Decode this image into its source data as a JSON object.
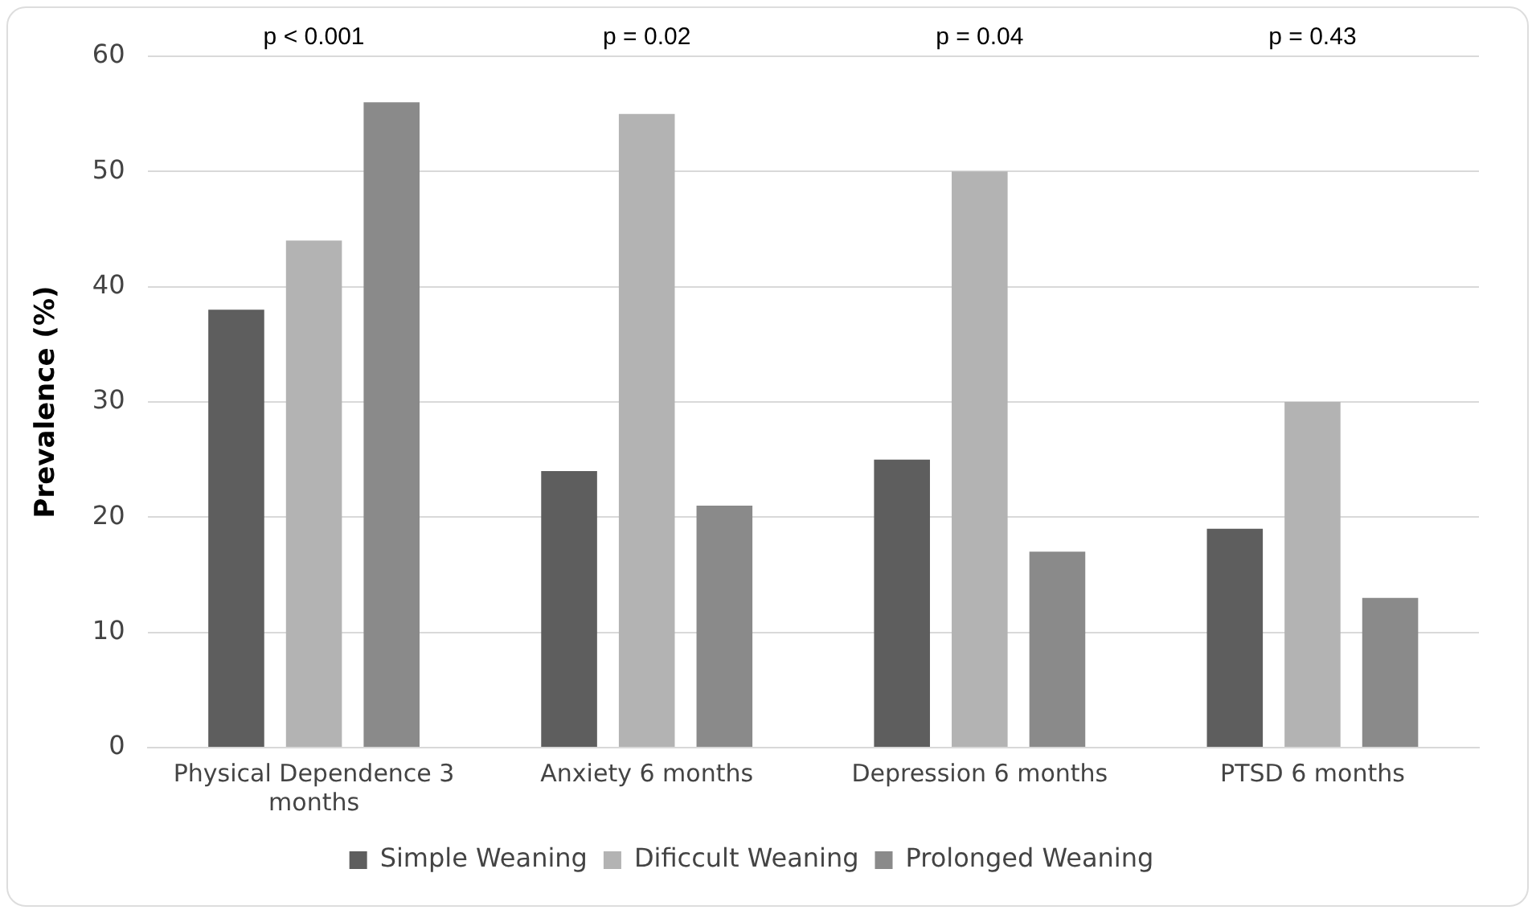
{
  "chart_data": {
    "type": "bar",
    "ylabel": "Prevalence (%)",
    "categories": [
      "Physical Dependence 3 months",
      "Anxiety 6 months",
      "Depression 6 months",
      "PTSD 6 months"
    ],
    "series": [
      {
        "name": "Simple Weaning",
        "color": "#5e5e5e",
        "values": [
          38,
          24,
          25,
          19
        ]
      },
      {
        "name": "Dificcult Weaning",
        "color": "#b3b3b3",
        "values": [
          44,
          55,
          50,
          30
        ]
      },
      {
        "name": "Prolonged Weaning",
        "color": "#8a8a8a",
        "values": [
          56,
          21,
          17,
          13
        ]
      }
    ],
    "ylim": [
      0,
      60
    ],
    "yticks": [
      0,
      10,
      20,
      30,
      40,
      50,
      60
    ],
    "grid": "y",
    "legend": "bottom",
    "annotations": [
      "p < 0.001",
      "p = 0.02",
      "p = 0.04",
      "p = 0.43"
    ]
  }
}
